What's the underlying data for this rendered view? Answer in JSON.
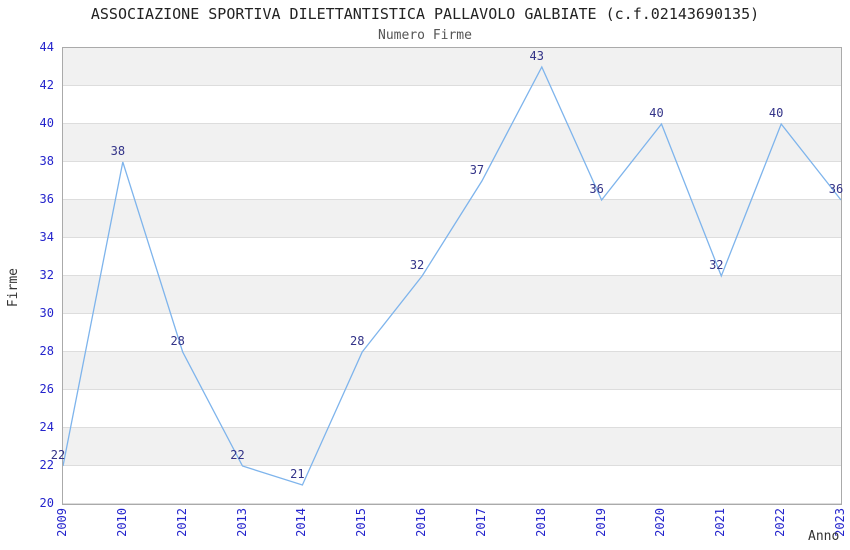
{
  "title": "ASSOCIAZIONE SPORTIVA DILETTANTISTICA PALLAVOLO GALBIATE (c.f.02143690135)",
  "subtitle": "Numero Firme",
  "chart_data": {
    "type": "line",
    "title": "ASSOCIAZIONE SPORTIVA DILETTANTISTICA PALLAVOLO GALBIATE (c.f.02143690135)",
    "subtitle": "Numero Firme",
    "categories": [
      "2009",
      "2010",
      "2012",
      "2013",
      "2014",
      "2015",
      "2016",
      "2017",
      "2018",
      "2019",
      "2020",
      "2021",
      "2022",
      "2023"
    ],
    "values": [
      22,
      38,
      28,
      22,
      21,
      28,
      32,
      37,
      43,
      36,
      40,
      32,
      40,
      36
    ],
    "xlabel": "Anno",
    "ylabel": "Firme",
    "ylim": [
      20,
      44
    ],
    "ytick_step": 2,
    "grid": "horizontal-alternating-bands",
    "legend": "none",
    "markers": "none",
    "data_labels": "above-points",
    "colors": {
      "line": "#7eb4ec",
      "tick_label": "#2424cc",
      "data_label": "#333388",
      "band_gray": "#f1f1f1",
      "gridline": "#dddddd",
      "plot_border": "#aaaaaa",
      "title": "#222222",
      "subtitle": "#555555",
      "axis_title": "#333333"
    }
  }
}
